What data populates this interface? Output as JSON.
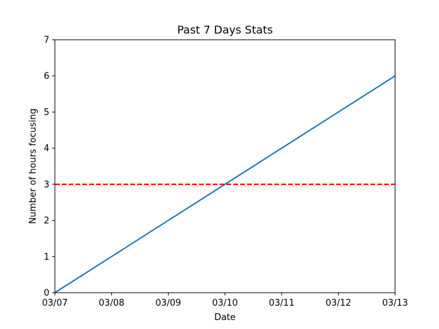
{
  "chart_data": {
    "type": "line",
    "title": "Past 7 Days Stats",
    "xlabel": "Date",
    "ylabel": "Number of hours focusing",
    "categories": [
      "03/07",
      "03/08",
      "03/09",
      "03/10",
      "03/11",
      "03/12",
      "03/13"
    ],
    "ylim": [
      0,
      7
    ],
    "yticks": [
      0,
      1,
      2,
      3,
      4,
      5,
      6,
      7
    ],
    "grid": false,
    "series": [
      {
        "values": [
          0,
          1,
          2,
          3,
          4,
          5,
          6
        ],
        "color": "#1f77b4",
        "style": "solid"
      }
    ],
    "reference_lines": [
      {
        "y": 3,
        "color": "#ff0000",
        "style": "dashed"
      }
    ]
  }
}
